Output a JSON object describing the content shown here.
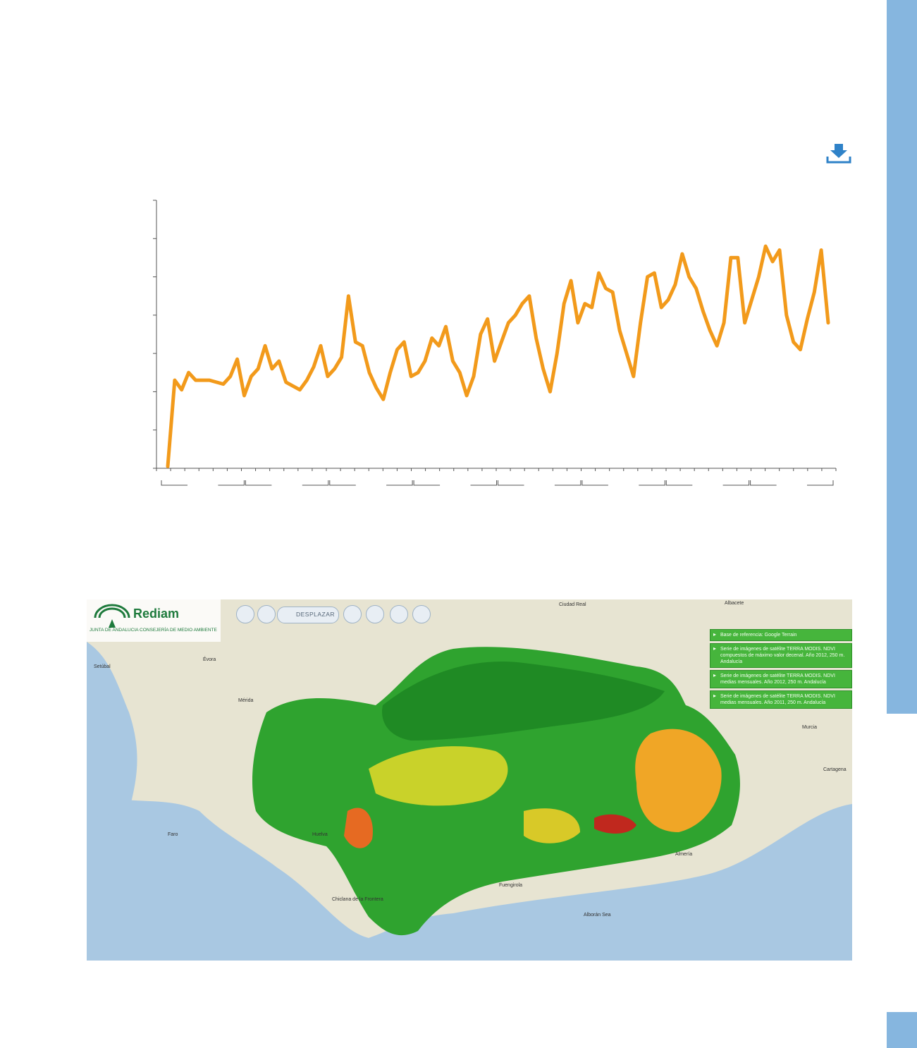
{
  "colors": {
    "line": "#f29a1b",
    "sidebar": "#86b6df",
    "axis": "#555555"
  },
  "download": {
    "icon": "download-icon"
  },
  "chart_data": {
    "type": "line",
    "title": "",
    "xlabel": "",
    "ylabel": "",
    "x_ticks_labels_visible": false,
    "y_ticks_labels_visible": false,
    "grid": false,
    "ylim": [
      0,
      7
    ],
    "y_tick_count": 8,
    "x_minor_tick_count": 48,
    "x_group_count": 8,
    "values": [
      0.05,
      2.3,
      2.05,
      2.5,
      2.3,
      2.3,
      2.3,
      2.25,
      2.2,
      2.4,
      2.85,
      1.9,
      2.4,
      2.6,
      3.2,
      2.6,
      2.8,
      2.25,
      2.15,
      2.05,
      2.3,
      2.65,
      3.2,
      2.4,
      2.6,
      2.9,
      4.5,
      3.3,
      3.2,
      2.5,
      2.1,
      1.8,
      2.5,
      3.1,
      3.3,
      2.4,
      2.5,
      2.8,
      3.4,
      3.2,
      3.7,
      2.8,
      2.5,
      1.9,
      2.4,
      3.5,
      3.9,
      2.8,
      3.3,
      3.8,
      4.0,
      4.3,
      4.5,
      3.4,
      2.6,
      2.0,
      3.0,
      4.3,
      4.9,
      3.8,
      4.3,
      4.2,
      5.1,
      4.7,
      4.6,
      3.6,
      3.0,
      2.4,
      3.8,
      5.0,
      5.1,
      4.2,
      4.4,
      4.8,
      5.6,
      5.0,
      4.7,
      4.1,
      3.6,
      3.2,
      3.8,
      5.5,
      5.5,
      3.8,
      4.4,
      5.0,
      5.8,
      5.4,
      5.7,
      4.0,
      3.3,
      3.1,
      3.9,
      4.6,
      5.7,
      3.8
    ]
  },
  "map": {
    "logo": {
      "name": "Rediam",
      "subtitle": "JUNTA DE ANDALUCIA   CONSEJERÍA DE MEDIO AMBIENTE"
    },
    "toolbar": {
      "pan_label": "DESPLAZAR"
    },
    "layers": [
      "Base de referencia: Google Terrain",
      "Serie de imágenes de satélite TERRA MODIS. NDVI compuestos de máximo valor decenal. Año 2012, 250 m. Andalucía",
      "Serie de imágenes de satélite TERRA MODIS. NDVI medias mensuales. Año 2012, 250 m. Andalucía",
      "Serie de imágenes de satélite TERRA MODIS. NDVI medias mensuales. Año 2011, 250 m. Andalucía"
    ],
    "cities": [
      "Setúbal",
      "Évora",
      "Mérida",
      "Ciudad Real",
      "Albacete",
      "Murcia",
      "Cartagena",
      "Faro",
      "Huelva",
      "Almería",
      "Alborán Sea",
      "Chiclana de la Frontera",
      "Fuengirola"
    ]
  }
}
